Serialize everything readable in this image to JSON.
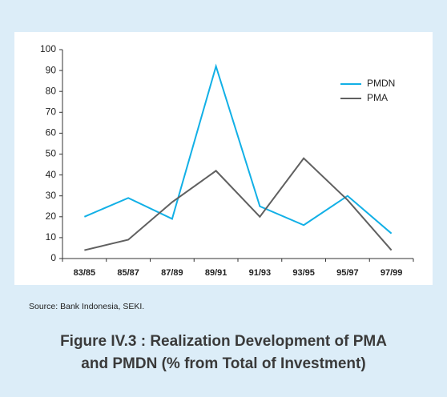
{
  "chart_data": {
    "type": "line",
    "categories": [
      "83/85",
      "85/87",
      "87/89",
      "89/91",
      "91/93",
      "93/95",
      "95/97",
      "97/99"
    ],
    "series": [
      {
        "name": "PMDN",
        "color": "#12b0e6",
        "values": [
          20,
          29,
          19,
          92,
          25,
          16,
          30,
          12
        ]
      },
      {
        "name": "PMA",
        "color": "#606060",
        "values": [
          4,
          9,
          27,
          42,
          20,
          48,
          28,
          4
        ]
      }
    ],
    "ylim": [
      0,
      100
    ],
    "yticks": [
      0,
      10,
      20,
      30,
      40,
      50,
      60,
      70,
      80,
      90,
      100
    ],
    "legend": "top-right",
    "source": "Source: Bank Indonesia, SEKI.",
    "title": [
      "Figure IV.3 : Realization Development of PMA",
      "and PMDN (% from Total of Investment)"
    ]
  }
}
